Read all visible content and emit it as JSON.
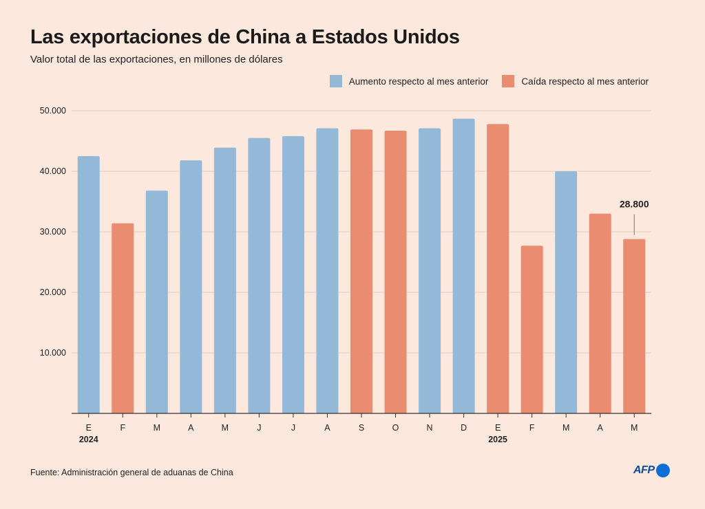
{
  "title": "Las exportaciones de China a Estados Unidos",
  "subtitle": "Valor total de las exportaciones, en millones de dólares",
  "source": "Fuente: Administración general de aduanas de China",
  "logo": "AFP",
  "colors": {
    "up": "#93b8d8",
    "down": "#ea8c6f",
    "grid": "#d9cbc2",
    "axis": "#333333"
  },
  "chart_data": {
    "type": "bar",
    "legend": [
      {
        "key": "up",
        "label": "Aumento respecto al mes anterior"
      },
      {
        "key": "down",
        "label": "Caída respecto al mes anterior"
      }
    ],
    "legend_position": "top-right",
    "categories": [
      "E",
      "F",
      "M",
      "A",
      "M",
      "J",
      "J",
      "A",
      "S",
      "O",
      "N",
      "D",
      "E",
      "F",
      "M",
      "A",
      "M"
    ],
    "year_labels": [
      {
        "index": 0,
        "label": "2024"
      },
      {
        "index": 12,
        "label": "2025"
      }
    ],
    "values": [
      42500,
      31400,
      36800,
      41800,
      43900,
      45500,
      45800,
      47100,
      46900,
      46700,
      47100,
      48700,
      47800,
      27700,
      40000,
      33000,
      28800
    ],
    "trend": [
      "up",
      "down",
      "up",
      "up",
      "up",
      "up",
      "up",
      "up",
      "down",
      "down",
      "up",
      "up",
      "down",
      "down",
      "up",
      "down",
      "down"
    ],
    "ylim": [
      0,
      50000
    ],
    "yticks": [
      10000,
      20000,
      30000,
      40000,
      50000
    ],
    "ytick_labels": [
      "10.000",
      "20.000",
      "30.000",
      "40.000",
      "50.000"
    ],
    "grid": true,
    "annotation": {
      "index": 16,
      "label": "28.800"
    }
  }
}
